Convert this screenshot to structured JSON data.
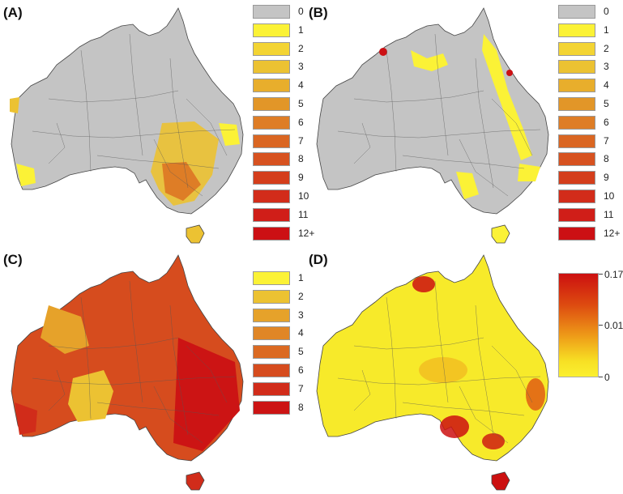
{
  "panels": [
    {
      "label": "(A)",
      "legend_type": "discrete",
      "legend": [
        {
          "label": "0",
          "color": "#c4c4c4"
        },
        {
          "label": "1",
          "color": "#fbf236"
        },
        {
          "label": "2",
          "color": "#f3d433"
        },
        {
          "label": "3",
          "color": "#ecc232"
        },
        {
          "label": "4",
          "color": "#e8ae2c"
        },
        {
          "label": "5",
          "color": "#e29628"
        },
        {
          "label": "6",
          "color": "#de7d26"
        },
        {
          "label": "7",
          "color": "#da6622"
        },
        {
          "label": "8",
          "color": "#d75220"
        },
        {
          "label": "9",
          "color": "#d43e1c"
        },
        {
          "label": "10",
          "color": "#d22c1a"
        },
        {
          "label": "11",
          "color": "#d01e18"
        },
        {
          "label": "12+",
          "color": "#cc1014"
        }
      ]
    },
    {
      "label": "(B)",
      "legend_type": "discrete",
      "legend": [
        {
          "label": "0",
          "color": "#c4c4c4"
        },
        {
          "label": "1",
          "color": "#fbf236"
        },
        {
          "label": "2",
          "color": "#f3d433"
        },
        {
          "label": "3",
          "color": "#ecc232"
        },
        {
          "label": "4",
          "color": "#e8ae2c"
        },
        {
          "label": "5",
          "color": "#e29628"
        },
        {
          "label": "6",
          "color": "#de7d26"
        },
        {
          "label": "7",
          "color": "#da6622"
        },
        {
          "label": "8",
          "color": "#d75220"
        },
        {
          "label": "9",
          "color": "#d43e1c"
        },
        {
          "label": "10",
          "color": "#d22c1a"
        },
        {
          "label": "11",
          "color": "#d01e18"
        },
        {
          "label": "12+",
          "color": "#cc1014"
        }
      ]
    },
    {
      "label": "(C)",
      "legend_type": "discrete",
      "legend": [
        {
          "label": "1",
          "color": "#fbf236"
        },
        {
          "label": "2",
          "color": "#ecc232"
        },
        {
          "label": "3",
          "color": "#e6a22a"
        },
        {
          "label": "4",
          "color": "#e08626"
        },
        {
          "label": "5",
          "color": "#db6a22"
        },
        {
          "label": "6",
          "color": "#d64c1e"
        },
        {
          "label": "7",
          "color": "#d12c1a"
        },
        {
          "label": "8",
          "color": "#cc1414"
        }
      ]
    },
    {
      "label": "(D)",
      "legend_type": "continuous",
      "gradient_labels": [
        "0.17",
        "0.01",
        "0"
      ],
      "gradient_colors": [
        "#cc1010",
        "#ee9a18",
        "#fbf030"
      ]
    }
  ],
  "map_colors": {
    "ocean": "#ffffff",
    "a_base": "#c4c4c4",
    "b_base": "#c4c4c4",
    "c_base": "#d64c1e",
    "d_base": "#f7ea2a",
    "border": "#555555"
  }
}
